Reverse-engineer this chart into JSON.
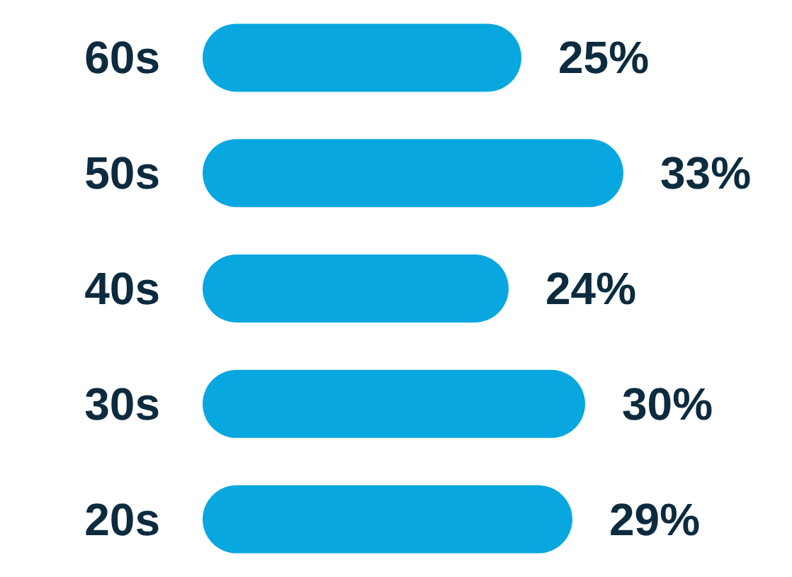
{
  "chart_data": {
    "type": "bar",
    "orientation": "horizontal",
    "categories": [
      "60s",
      "50s",
      "40s",
      "30s",
      "20s"
    ],
    "values": [
      25,
      33,
      24,
      30,
      29
    ],
    "color": "#09a7e0",
    "value_labels": [
      "25%",
      "33%",
      "24%",
      "30%",
      "29%"
    ]
  }
}
